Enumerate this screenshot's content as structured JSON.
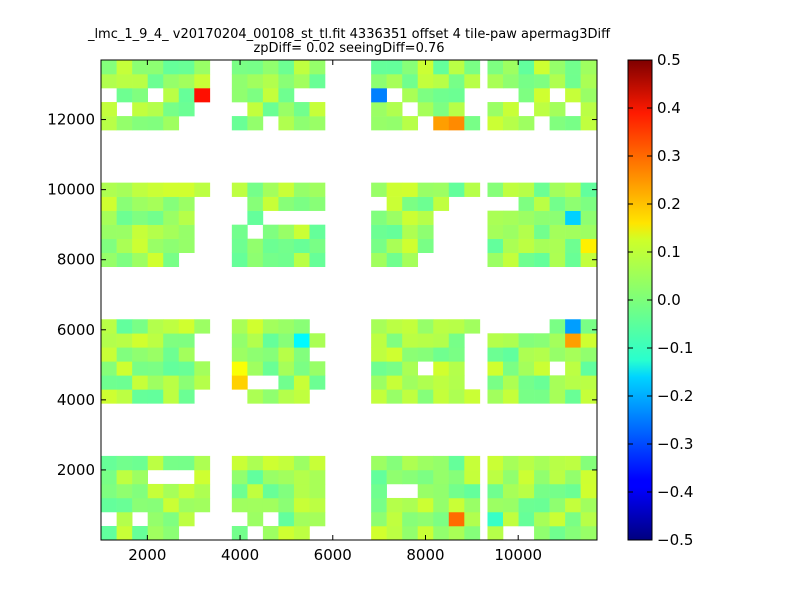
{
  "chart_data": {
    "type": "heatmap",
    "title": "_lmc_1_9_4_ v20170204_00108_st_tl.fit 4336351 offset 4 tile-paw apermag3Diff",
    "subtitle": "zpDiff= 0.02 seeingDiff=0.76",
    "xlabel": "",
    "ylabel": "",
    "xlim": [
      1000,
      11700
    ],
    "ylim": [
      0,
      13700
    ],
    "x_ticks": [
      2000,
      4000,
      6000,
      8000,
      10000
    ],
    "y_ticks": [
      2000,
      4000,
      6000,
      8000,
      10000,
      12000
    ],
    "x_tick_labels": [
      "2000",
      "4000",
      "6000",
      "8000",
      "10000"
    ],
    "y_tick_labels": [
      "2000",
      "4000",
      "6000",
      "8000",
      "10000",
      "12000"
    ],
    "cell_size": [
      335,
      400
    ],
    "colormap": "jet",
    "colorbar": {
      "min": -0.5,
      "max": 0.5,
      "ticks": [
        0.5,
        0.4,
        0.3,
        0.2,
        0.1,
        0.0,
        -0.1,
        -0.2,
        -0.3,
        -0.4,
        -0.5
      ],
      "tick_labels": [
        "0.5",
        "0.4",
        "0.3",
        "0.2",
        "0.1",
        "0.0",
        "−0.1",
        "−0.2",
        "−0.3",
        "−0.4",
        "−0.5"
      ]
    },
    "grid": false,
    "x_centers": [
      1170,
      1505,
      1840,
      2175,
      2510,
      2845,
      3180,
      3990,
      4325,
      4660,
      4995,
      5330,
      5665,
      6995,
      7330,
      7665,
      8000,
      8335,
      8670,
      9005,
      9505,
      9840,
      10175,
      10510,
      10845,
      11180,
      11515
    ],
    "row_blocks": [
      {
        "y_bottom": 0,
        "rows": 6
      },
      {
        "y_bottom": 3900,
        "rows": 6
      },
      {
        "y_bottom": 7800,
        "rows": 6
      },
      {
        "y_bottom": 11700,
        "rows": 5
      }
    ],
    "special_cells": [
      {
        "xi": 6,
        "row": 20,
        "value": 0.36
      },
      {
        "xi": 13,
        "row": 20,
        "value": -0.25
      },
      {
        "xi": 17,
        "row": 18,
        "value": 0.22
      },
      {
        "xi": 18,
        "row": 18,
        "value": 0.24
      },
      {
        "xi": 25,
        "row": 15,
        "value": -0.17
      },
      {
        "xi": 26,
        "row": 13,
        "value": 0.14
      },
      {
        "xi": 25,
        "row": 11,
        "value": -0.22
      },
      {
        "xi": 25,
        "row": 10,
        "value": 0.22
      },
      {
        "xi": 7,
        "row": 8,
        "value": 0.12
      },
      {
        "xi": 7,
        "row": 7,
        "value": 0.17
      },
      {
        "xi": 11,
        "row": 10,
        "value": -0.13
      },
      {
        "xi": 18,
        "row": 1,
        "value": 0.27
      },
      {
        "xi": 20,
        "row": 1,
        "value": -0.07
      }
    ],
    "missing_cells": [
      [
        0,
        1
      ],
      [
        2,
        1
      ],
      [
        6,
        1
      ],
      [
        7,
        1
      ],
      [
        8,
        0
      ],
      [
        9,
        1
      ],
      [
        3,
        4
      ],
      [
        4,
        4
      ],
      [
        5,
        4
      ],
      [
        5,
        0
      ],
      [
        6,
        0
      ],
      [
        12,
        0
      ],
      [
        21,
        0
      ],
      [
        22,
        0
      ],
      [
        14,
        3
      ],
      [
        15,
        3
      ],
      [
        6,
        6
      ],
      [
        7,
        6
      ],
      [
        6,
        9
      ],
      [
        6,
        10
      ],
      [
        12,
        11
      ],
      [
        12,
        9
      ],
      [
        8,
        7
      ],
      [
        9,
        7
      ],
      [
        12,
        6
      ],
      [
        16,
        8
      ],
      [
        19,
        7
      ],
      [
        19,
        8
      ],
      [
        19,
        9
      ],
      [
        19,
        10
      ],
      [
        24,
        8
      ],
      [
        23,
        11
      ],
      [
        20,
        11
      ],
      [
        21,
        11
      ],
      [
        22,
        11
      ],
      [
        23,
        11
      ],
      [
        5,
        12
      ],
      [
        6,
        12
      ],
      [
        6,
        13
      ],
      [
        6,
        14
      ],
      [
        6,
        15
      ],
      [
        6,
        16
      ],
      [
        7,
        16
      ],
      [
        7,
        15
      ],
      [
        8,
        14
      ],
      [
        12,
        15
      ],
      [
        13,
        16
      ],
      [
        11,
        15
      ],
      [
        10,
        15
      ],
      [
        9,
        15
      ],
      [
        16,
        12
      ],
      [
        17,
        12
      ],
      [
        17,
        13
      ],
      [
        17,
        14
      ],
      [
        17,
        15
      ],
      [
        18,
        12
      ],
      [
        18,
        13
      ],
      [
        18,
        14
      ],
      [
        18,
        15
      ],
      [
        18,
        16
      ],
      [
        19,
        12
      ],
      [
        19,
        13
      ],
      [
        19,
        14
      ],
      [
        19,
        15
      ],
      [
        19,
        16
      ],
      [
        20,
        16
      ],
      [
        21,
        16
      ],
      [
        0,
        20
      ],
      [
        1,
        19
      ],
      [
        3,
        20
      ],
      [
        5,
        18
      ],
      [
        6,
        19
      ],
      [
        6,
        18
      ],
      [
        7,
        19
      ],
      [
        9,
        18
      ],
      [
        11,
        20
      ],
      [
        12,
        20
      ],
      [
        14,
        20
      ],
      [
        15,
        19
      ],
      [
        16,
        18
      ],
      [
        19,
        19
      ],
      [
        19,
        20
      ],
      [
        20,
        20
      ],
      [
        21,
        20
      ],
      [
        22,
        19
      ],
      [
        23,
        18
      ],
      [
        25,
        19
      ],
      [
        24,
        20
      ]
    ]
  }
}
